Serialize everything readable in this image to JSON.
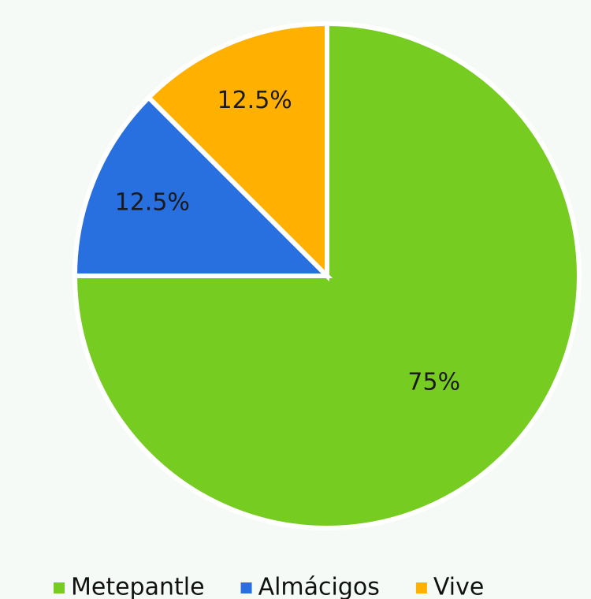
{
  "chart_data": {
    "type": "pie",
    "categories": [
      "Metepantle",
      "Almácigos",
      "Vive"
    ],
    "values": [
      75,
      12.5,
      12.5
    ],
    "value_labels": [
      "75%",
      "12.5%",
      "12.5%"
    ],
    "colors": [
      "#77cc22",
      "#2870e0",
      "#ffb000"
    ],
    "legend": "bottom"
  }
}
